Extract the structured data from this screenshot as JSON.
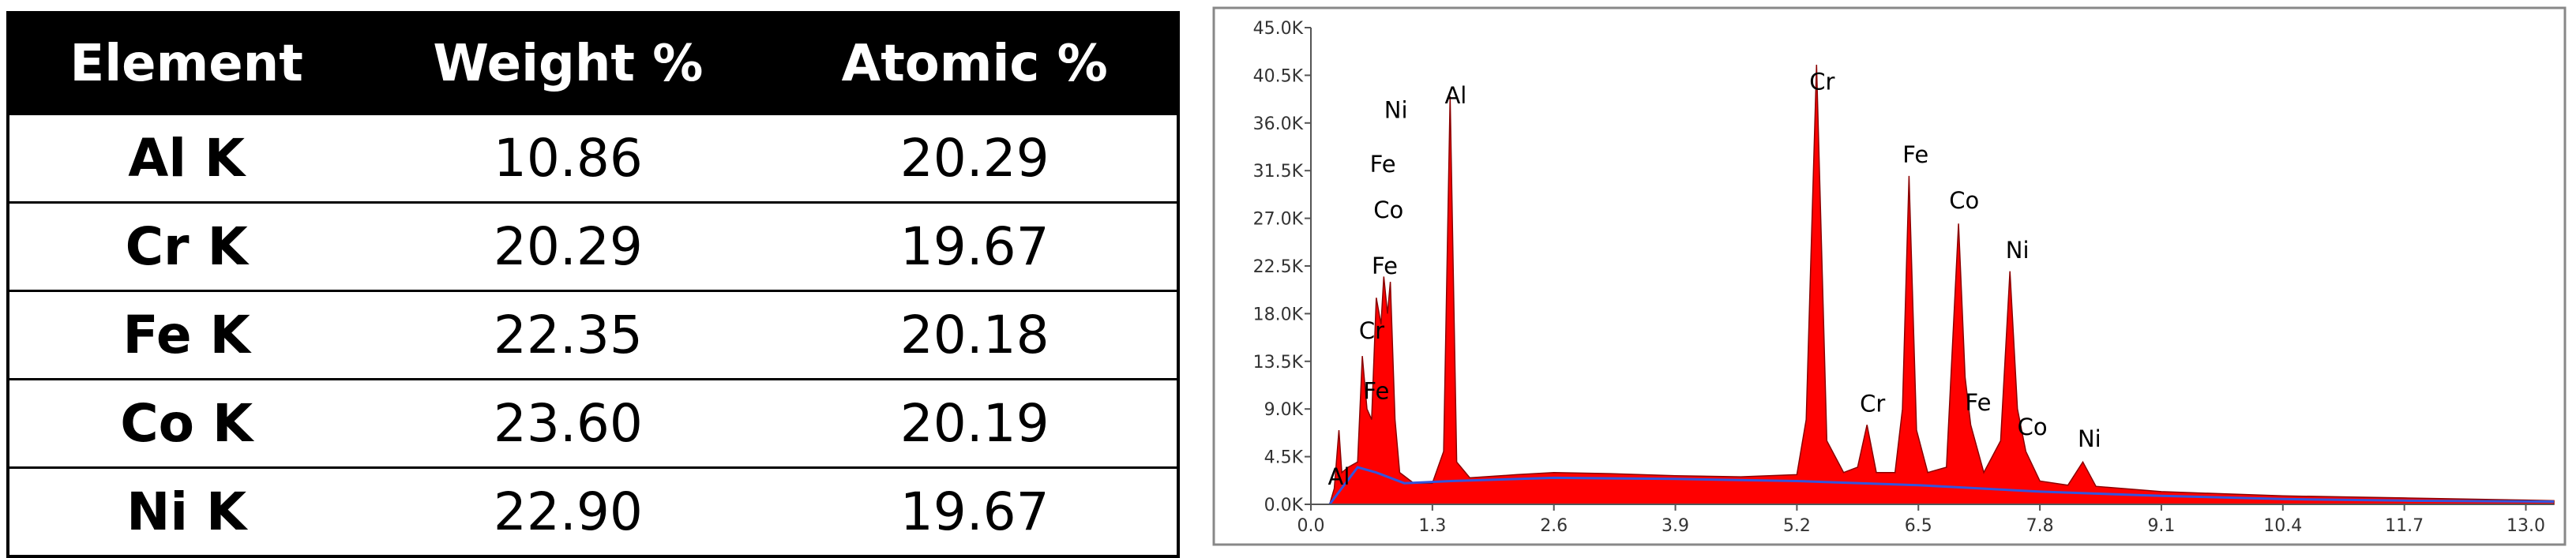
{
  "table": {
    "header": [
      "Element",
      "Weight %",
      "Atomic %"
    ],
    "rows": [
      [
        "Al K",
        "10.86",
        "20.29"
      ],
      [
        "Cr K",
        "20.29",
        "19.67"
      ],
      [
        "Fe K",
        "22.35",
        "20.18"
      ],
      [
        "Co K",
        "23.60",
        "20.19"
      ],
      [
        "Ni K",
        "22.90",
        "19.67"
      ]
    ]
  },
  "chart_data": {
    "type": "area",
    "series": [
      {
        "color": "#ff0000",
        "x": [
          0.2,
          0.25,
          0.3,
          0.33,
          0.4,
          0.5,
          0.55,
          0.6,
          0.65,
          0.7,
          0.75,
          0.78,
          0.82,
          0.85,
          0.9,
          0.95,
          1.1,
          1.3,
          1.42,
          1.49,
          1.56,
          1.7,
          2.2,
          2.6,
          3.2,
          3.9,
          4.6,
          5.2,
          5.3,
          5.41,
          5.52,
          5.7,
          5.85,
          5.95,
          6.05,
          6.25,
          6.33,
          6.4,
          6.48,
          6.6,
          6.8,
          6.93,
          7.0,
          7.06,
          7.2,
          7.38,
          7.48,
          7.56,
          7.65,
          7.8,
          8.1,
          8.26,
          8.4,
          9.1,
          10.4,
          11.7,
          13.0,
          13.3
        ],
        "values": [
          0,
          1500,
          7000,
          3000,
          3500,
          4000,
          14000,
          9000,
          8000,
          19500,
          17000,
          21500,
          18000,
          21000,
          8000,
          3000,
          2000,
          2000,
          5000,
          38500,
          4000,
          2500,
          2800,
          3000,
          2900,
          2700,
          2600,
          2800,
          8000,
          41500,
          6000,
          3000,
          3500,
          7500,
          3000,
          3000,
          9000,
          31000,
          7000,
          3000,
          3500,
          26500,
          12000,
          7500,
          3000,
          6000,
          22000,
          9000,
          5000,
          2200,
          1800,
          4000,
          1700,
          1200,
          800,
          600,
          400,
          350
        ]
      },
      {
        "color": "#3355dd",
        "x": [
          0.2,
          0.5,
          0.7,
          1.0,
          1.5,
          2.6,
          3.9,
          5.2,
          6.5,
          7.8,
          9.1,
          10.4,
          11.7,
          13.3
        ],
        "values": [
          0,
          3500,
          3000,
          2000,
          2200,
          2500,
          2400,
          2200,
          1800,
          1200,
          800,
          500,
          350,
          250
        ]
      }
    ],
    "xlim": [
      0,
      13.3
    ],
    "xticks": [
      {
        "value": 0,
        "label": "0.0"
      },
      1.3,
      2.6,
      3.9,
      5.2,
      6.5,
      7.8,
      9.1,
      10.4,
      11.7,
      {
        "value": 13,
        "label": "13.0"
      }
    ],
    "ylim": [
      0,
      45000
    ],
    "yticks": [
      {
        "value": 0,
        "label": "0.0K"
      },
      {
        "value": 4500,
        "label": "4.5K"
      },
      {
        "value": 9000,
        "label": "9.0K"
      },
      {
        "value": 13500,
        "label": "13.5K"
      },
      {
        "value": 18000,
        "label": "18.0K"
      },
      {
        "value": 22500,
        "label": "22.5K"
      },
      {
        "value": 27000,
        "label": "27.0K"
      },
      {
        "value": 31500,
        "label": "31.5K"
      },
      {
        "value": 36000,
        "label": "36.0K"
      },
      {
        "value": 40500,
        "label": "40.5K"
      },
      {
        "value": 45000,
        "label": "45.0K"
      }
    ],
    "annotations": [
      {
        "text": "Ni",
        "x": 0.91,
        "y": 37200
      },
      {
        "text": "Al",
        "x": 1.55,
        "y": 38600
      },
      {
        "text": "Fe",
        "x": 0.77,
        "y": 32100
      },
      {
        "text": "Co",
        "x": 0.83,
        "y": 27800
      },
      {
        "text": "Fe",
        "x": 0.79,
        "y": 22500
      },
      {
        "text": "Cr",
        "x": 0.65,
        "y": 16400
      },
      {
        "text": "Fe",
        "x": 0.7,
        "y": 10700
      },
      {
        "text": "Al",
        "x": 0.3,
        "y": 2600
      },
      {
        "text": "Cr",
        "x": 5.47,
        "y": 39900
      },
      {
        "text": "Fe",
        "x": 6.47,
        "y": 33000
      },
      {
        "text": "Co",
        "x": 6.99,
        "y": 28700
      },
      {
        "text": "Ni",
        "x": 7.56,
        "y": 24000
      },
      {
        "text": "Cr",
        "x": 6.01,
        "y": 9500
      },
      {
        "text": "Fe",
        "x": 7.14,
        "y": 9600
      },
      {
        "text": "Co",
        "x": 7.72,
        "y": 7300
      },
      {
        "text": "Ni",
        "x": 8.33,
        "y": 6200
      }
    ]
  }
}
